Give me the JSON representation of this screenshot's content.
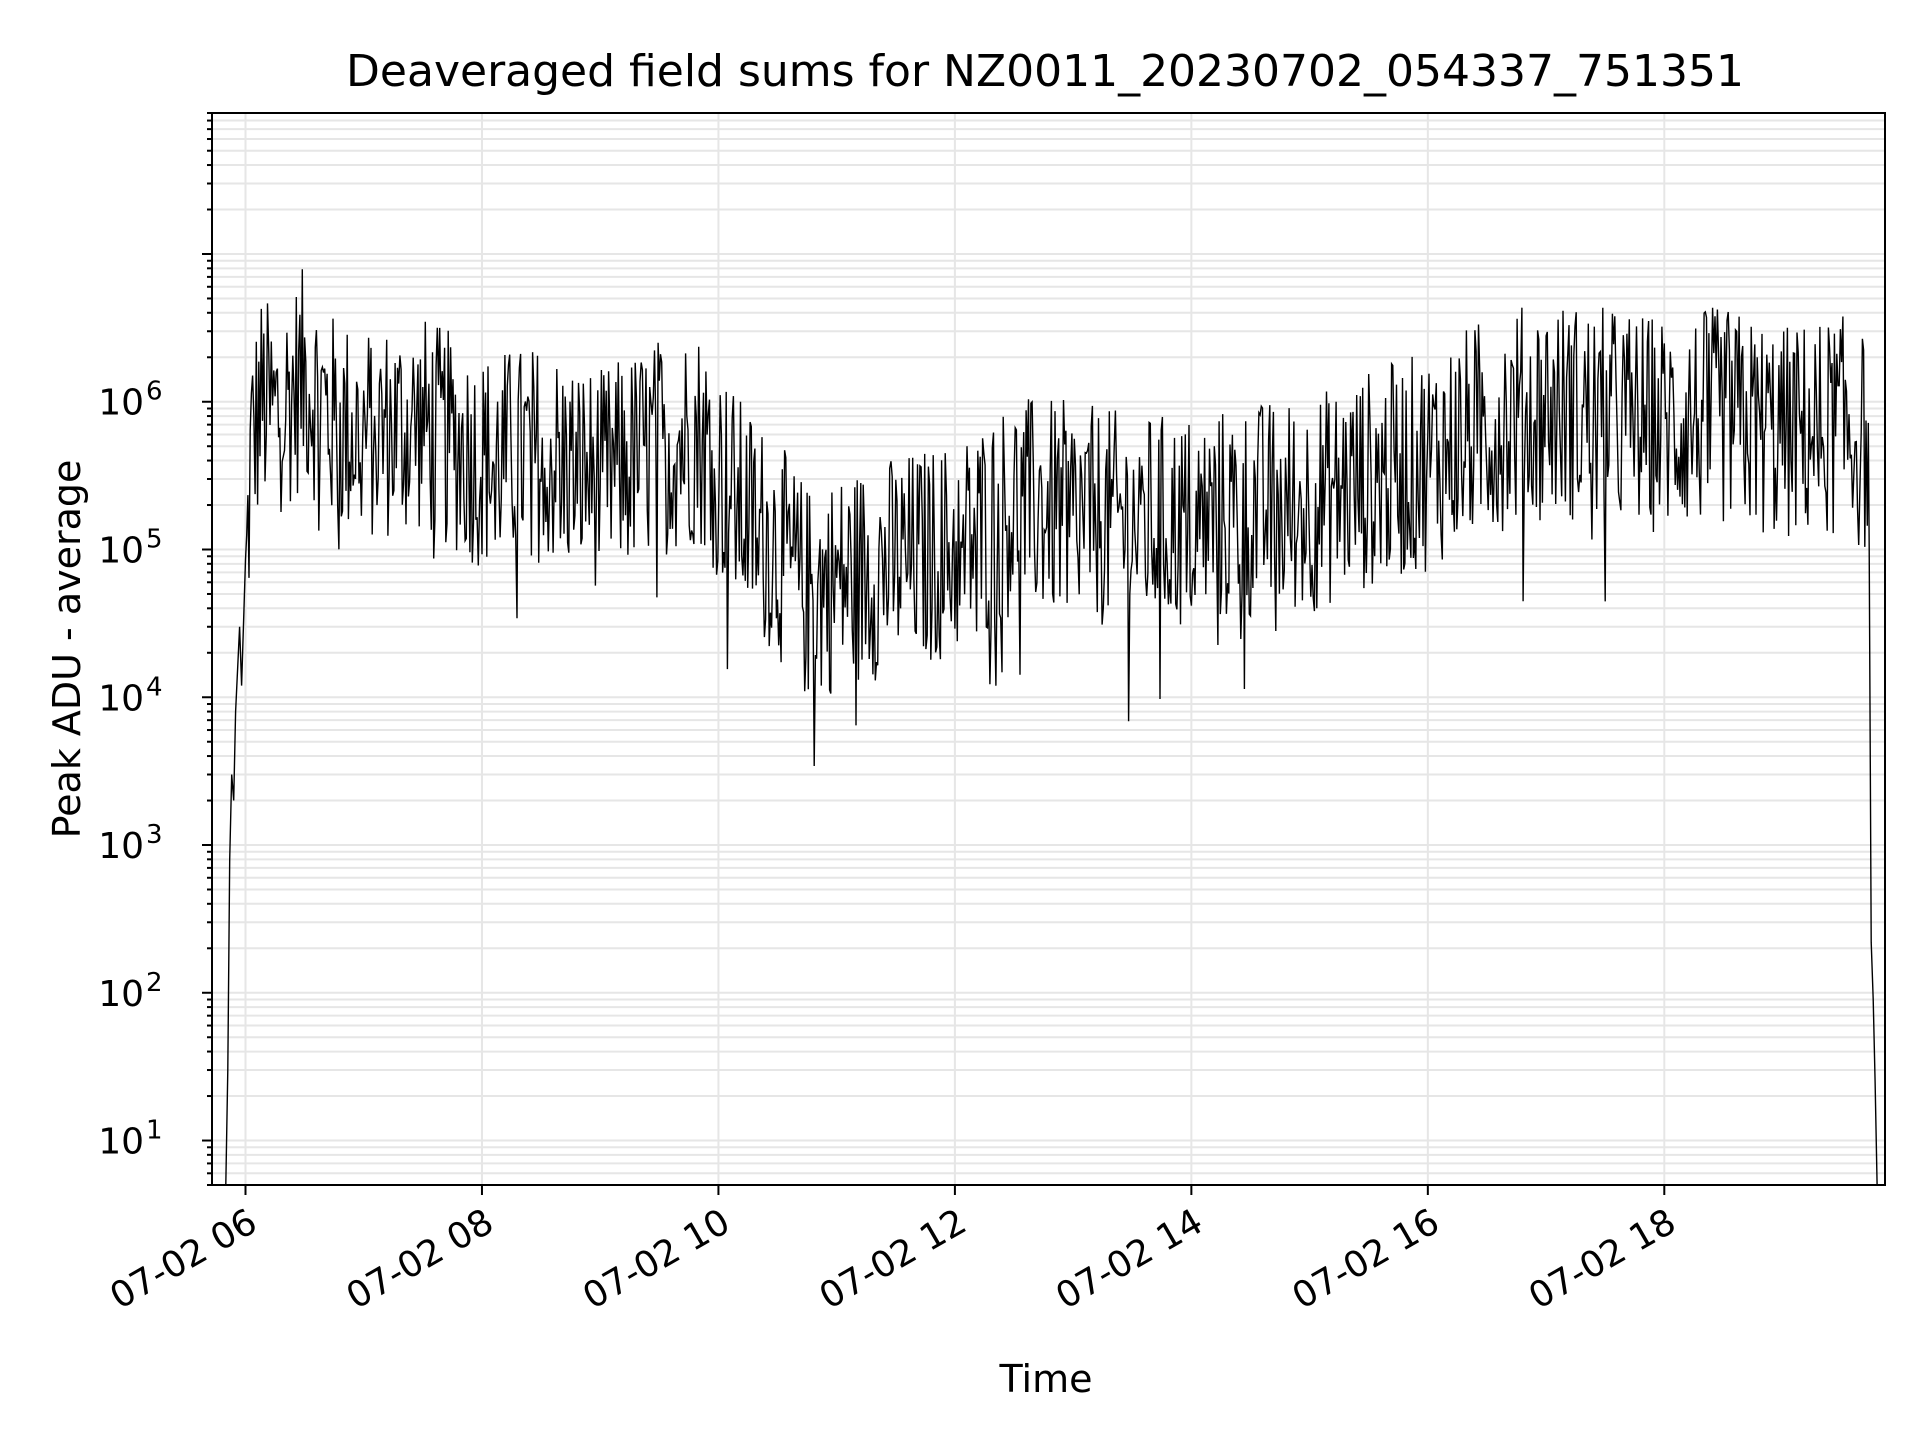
{
  "chart_data": {
    "type": "line",
    "title": "Deaveraged field sums for NZ0011_20230702_054337_751351",
    "xlabel": "Time",
    "ylabel": "Peak ADU - average",
    "yscale": "log",
    "xlim": [
      "2023-07-02 05:43",
      "2023-07-02 19:52"
    ],
    "ylim": [
      5,
      90000000
    ],
    "grid": true,
    "grid_minor": true,
    "x_ticks": [
      {
        "t": "2023-07-02 06:00",
        "label": "07-02 06"
      },
      {
        "t": "2023-07-02 08:00",
        "label": "07-02 08"
      },
      {
        "t": "2023-07-02 10:00",
        "label": "07-02 10"
      },
      {
        "t": "2023-07-02 12:00",
        "label": "07-02 12"
      },
      {
        "t": "2023-07-02 14:00",
        "label": "07-02 14"
      },
      {
        "t": "2023-07-02 16:00",
        "label": "07-02 16"
      },
      {
        "t": "2023-07-02 18:00",
        "label": "07-02 18"
      }
    ],
    "y_ticks": [
      {
        "value": 10,
        "base": "10",
        "exp": "1"
      },
      {
        "value": 100,
        "base": "10",
        "exp": "2"
      },
      {
        "value": 1000,
        "base": "10",
        "exp": "3"
      },
      {
        "value": 10000,
        "base": "10",
        "exp": "4"
      },
      {
        "value": 100000,
        "base": "10",
        "exp": "5"
      },
      {
        "value": 1000000,
        "base": "10",
        "exp": "6"
      }
    ],
    "series": [
      {
        "color": "#000000",
        "points": [
          [
            "2023-07-02 05:50",
            5
          ],
          [
            "2023-07-02 05:51",
            30
          ],
          [
            "2023-07-02 05:52",
            800
          ],
          [
            "2023-07-02 05:53",
            3000
          ],
          [
            "2023-07-02 05:54",
            2000
          ],
          [
            "2023-07-02 05:55",
            8000
          ],
          [
            "2023-07-02 05:57",
            30000
          ],
          [
            "2023-07-02 05:58",
            12000
          ],
          [
            "2023-07-02 06:00",
            50000
          ],
          [
            "2023-07-02 06:03",
            500000
          ],
          [
            "2023-07-02 06:08",
            1000000
          ],
          [
            "2023-07-02 06:15",
            800000
          ],
          [
            "2023-07-02 06:30",
            1500000
          ],
          [
            "2023-07-02 06:45",
            700000
          ],
          [
            "2023-07-02 07:00",
            600000
          ],
          [
            "2023-07-02 07:30",
            700000
          ],
          [
            "2023-07-02 08:00",
            400000
          ],
          [
            "2023-07-02 08:30",
            450000
          ],
          [
            "2023-07-02 09:00",
            300000
          ],
          [
            "2023-07-02 09:30",
            500000
          ],
          [
            "2023-07-02 09:50",
            600000
          ],
          [
            "2023-07-02 10:10",
            200000
          ],
          [
            "2023-07-02 10:30",
            100000
          ],
          [
            "2023-07-02 10:45",
            50000
          ],
          [
            "2023-07-02 11:00",
            60000
          ],
          [
            "2023-07-02 11:30",
            80000
          ],
          [
            "2023-07-02 12:00",
            100000
          ],
          [
            "2023-07-02 12:30",
            200000
          ],
          [
            "2023-07-02 13:00",
            180000
          ],
          [
            "2023-07-02 13:30",
            150000
          ],
          [
            "2023-07-02 14:00",
            150000
          ],
          [
            "2023-07-02 14:30",
            180000
          ],
          [
            "2023-07-02 15:00",
            200000
          ],
          [
            "2023-07-02 15:30",
            300000
          ],
          [
            "2023-07-02 16:00",
            400000
          ],
          [
            "2023-07-02 16:30",
            700000
          ],
          [
            "2023-07-02 17:00",
            900000
          ],
          [
            "2023-07-02 17:30",
            800000
          ],
          [
            "2023-07-02 18:00",
            700000
          ],
          [
            "2023-07-02 18:30",
            800000
          ],
          [
            "2023-07-02 19:00",
            600000
          ],
          [
            "2023-07-02 19:30",
            700000
          ],
          [
            "2023-07-02 19:43",
            500000
          ],
          [
            "2023-07-02 19:44",
            100000
          ],
          [
            "2023-07-02 19:45",
            220
          ],
          [
            "2023-07-02 19:46",
            90
          ],
          [
            "2023-07-02 19:47",
            25
          ],
          [
            "2023-07-02 19:48",
            5
          ]
        ]
      }
    ]
  }
}
